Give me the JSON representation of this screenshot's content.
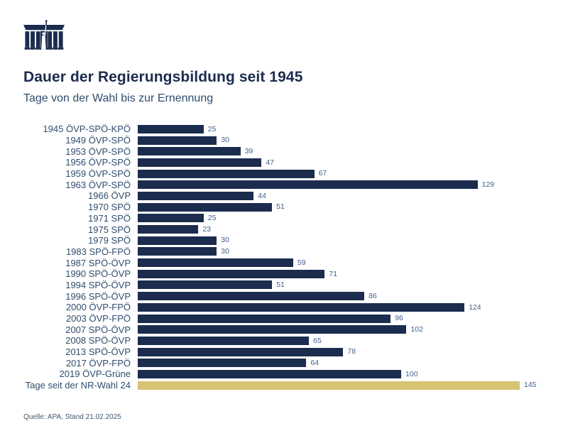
{
  "header": {
    "logo": "austrian-parliament-logo",
    "title": "Dauer der Regierungsbildung seit 1945",
    "subtitle": "Tage von der Wahl bis zur Ernennung"
  },
  "chart_data": {
    "type": "bar",
    "orientation": "horizontal",
    "title": "Dauer der Regierungsbildung seit 1945",
    "subtitle": "Tage von der Wahl bis zur Ernennung",
    "xlabel": "",
    "ylabel": "",
    "unit": "Tage",
    "xlim": [
      0,
      145
    ],
    "grid": false,
    "value_labels_shown": true,
    "categories": [
      "1945 ÖVP-SPÖ-KPÖ",
      "1949 ÖVP-SPÖ",
      "1953 ÖVP-SPÖ",
      "1956 ÖVP-SPÖ",
      "1959 ÖVP-SPÖ",
      "1963 ÖVP-SPÖ",
      "1966 ÖVP",
      "1970 SPÖ",
      "1971 SPÖ",
      "1975 SPÖ",
      "1979 SPÖ",
      "1983 SPÖ-FPÖ",
      "1987 SPÖ-ÖVP",
      "1990 SPÖ-ÖVP",
      "1994 SPÖ-ÖVP",
      "1996 SPÖ-ÖVP",
      "2000 ÖVP-FPÖ",
      "2003 ÖVP-FPÖ",
      "2007 SPÖ-ÖVP",
      "2008 SPÖ-ÖVP",
      "2013 SPÖ-ÖVP",
      "2017 ÖVP-FPÖ",
      "2019 ÖVP-Grüne",
      "Tage seit der NR-Wahl 24"
    ],
    "values": [
      25,
      30,
      39,
      47,
      67,
      129,
      44,
      51,
      25,
      23,
      30,
      30,
      59,
      71,
      51,
      86,
      124,
      96,
      102,
      65,
      78,
      64,
      100,
      145
    ],
    "highlight_index": 23,
    "bar_color": "#1b2c4e",
    "highlight_color": "#d6c373"
  },
  "footer": {
    "source": "Quelle: APA, Stand 21.02.2025"
  },
  "colors": {
    "background": "#ffffff",
    "navy": "#1b2c4e",
    "gold": "#d6c373",
    "row_label": "#2f4d6e",
    "value_label": "#41608a"
  }
}
